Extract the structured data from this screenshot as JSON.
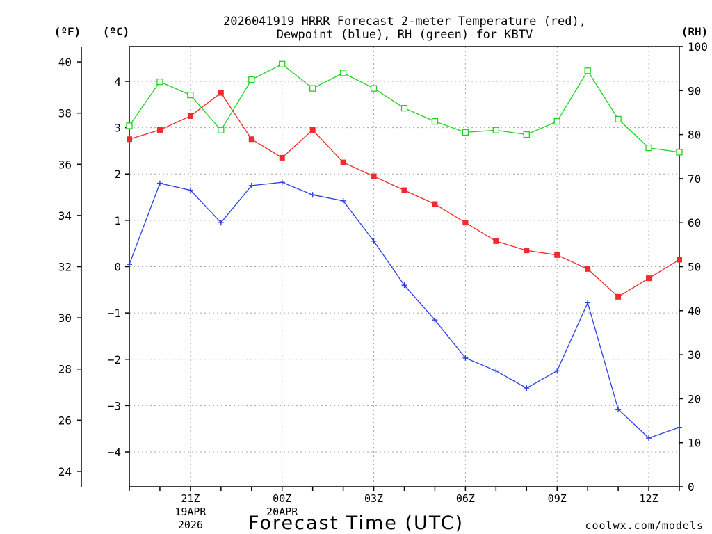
{
  "title_lines": [
    "2026041919 HRRR Forecast 2-meter Temperature (red),",
    "Dewpoint (blue), RH (green) for KBTV"
  ],
  "unit_labels": {
    "fahrenheit": "(ºF)",
    "celsius": "(ºC)",
    "rh": "(RH)"
  },
  "x_axis_title": "Forecast Time (UTC)",
  "credit": "coolwx.com/models",
  "colors": {
    "temperature": "#ef2b2b",
    "dewpoint": "#2b3fe6",
    "rh": "#1ed31e",
    "grid": "#a8a8a8"
  },
  "chart_data": {
    "type": "line",
    "title": "2026041919 HRRR Forecast 2-meter Temperature (red), Dewpoint (blue), RH (green) for KBTV",
    "xlabel": "Forecast Time (UTC)",
    "x": [
      "19Z",
      "20Z",
      "21Z",
      "22Z",
      "23Z",
      "00Z",
      "01Z",
      "02Z",
      "03Z",
      "04Z",
      "05Z",
      "06Z",
      "07Z",
      "08Z",
      "09Z",
      "10Z",
      "11Z",
      "12Z",
      "13Z"
    ],
    "x_ticks": [
      {
        "label": "21Z",
        "sub": [
          "19APR",
          "2026"
        ]
      },
      {
        "label": "00Z",
        "sub": [
          "20APR"
        ]
      },
      {
        "label": "03Z",
        "sub": []
      },
      {
        "label": "06Z",
        "sub": []
      },
      {
        "label": "09Z",
        "sub": []
      },
      {
        "label": "12Z",
        "sub": []
      }
    ],
    "axes": {
      "fahrenheit": {
        "label": "(ºF)",
        "range": [
          23.4,
          40.6
        ],
        "ticks": [
          "24",
          "26",
          "28",
          "30",
          "32",
          "34",
          "36",
          "38",
          "40"
        ]
      },
      "celsius": {
        "label": "(ºC)",
        "range": [
          -4.75,
          4.75
        ],
        "ticks": [
          "-4",
          "-3",
          "-2",
          "-1",
          "0",
          "1",
          "2",
          "3",
          "4"
        ]
      },
      "rh": {
        "label": "(RH)",
        "range": [
          0,
          100
        ],
        "ticks": [
          "0",
          "10",
          "20",
          "30",
          "40",
          "50",
          "60",
          "70",
          "80",
          "90",
          "100"
        ]
      }
    },
    "grid": true,
    "series": [
      {
        "name": "Temperature",
        "color": "#ef2b2b",
        "marker": "filled-square",
        "axis": "celsius",
        "values": [
          2.75,
          2.95,
          3.25,
          3.75,
          2.75,
          2.35,
          2.95,
          2.25,
          1.95,
          1.65,
          1.35,
          0.95,
          0.55,
          0.35,
          0.25,
          -0.05,
          -0.65,
          -0.25,
          0.15
        ]
      },
      {
        "name": "Dewpoint",
        "color": "#2b3fe6",
        "marker": "plus",
        "axis": "celsius",
        "values": [
          0.05,
          1.8,
          1.65,
          0.95,
          1.75,
          1.82,
          1.55,
          1.42,
          0.55,
          -0.4,
          -1.15,
          -1.97,
          -2.25,
          -2.62,
          -2.25,
          -0.78,
          -3.08,
          -3.7,
          -3.47
        ]
      },
      {
        "name": "RH",
        "color": "#1ed31e",
        "marker": "open-square",
        "axis": "rh",
        "values": [
          82,
          92,
          89,
          81,
          92.5,
          96,
          90.5,
          94,
          90.5,
          86,
          83,
          80.5,
          81,
          80,
          83,
          94.5,
          83.5,
          77,
          76
        ]
      }
    ]
  }
}
